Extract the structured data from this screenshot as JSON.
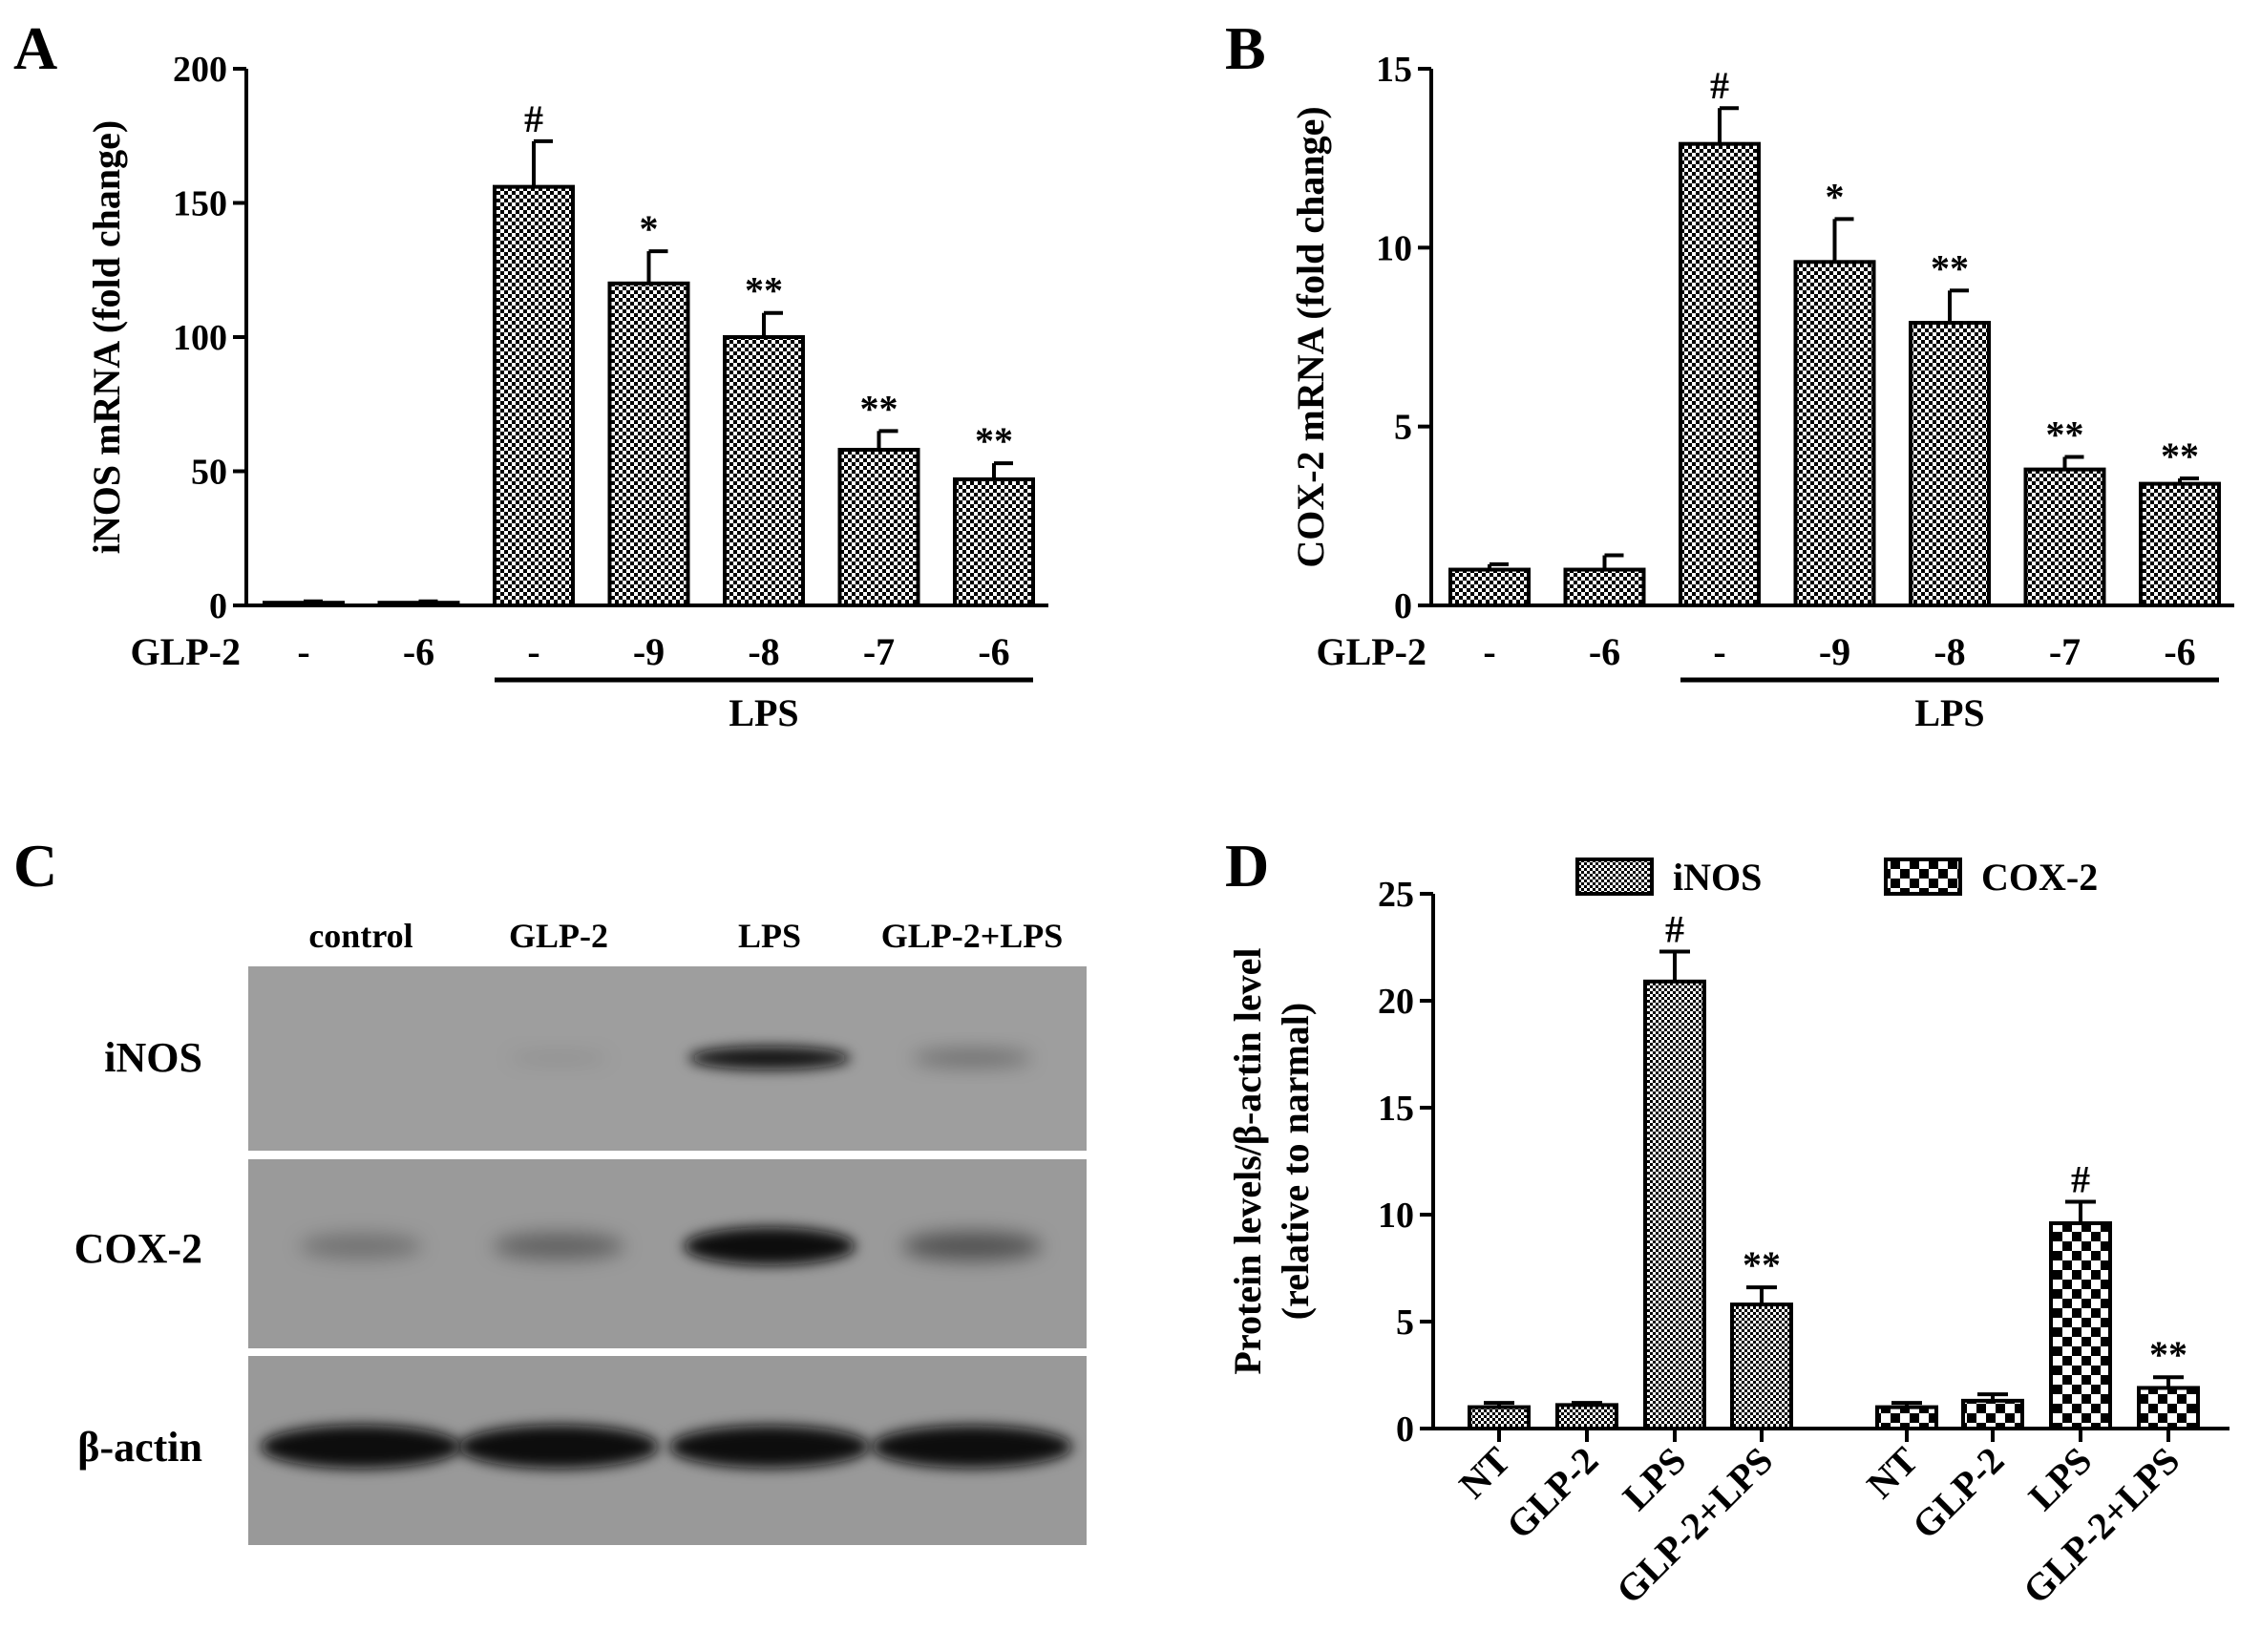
{
  "chart_data": [
    {
      "panel": "A",
      "type": "bar",
      "ylabel": "iNOS mRNA (fold change)",
      "ylim": [
        0,
        200
      ],
      "yticks": [
        0,
        50,
        100,
        150,
        200
      ],
      "row_label": "GLP-2",
      "categories": [
        "-",
        "-6",
        "-",
        "-9",
        "-8",
        "-7",
        "-6"
      ],
      "values": [
        1,
        1,
        156,
        120,
        100,
        58,
        47
      ],
      "errors": [
        0.5,
        0.5,
        17,
        12,
        9,
        7,
        6
      ],
      "significance": [
        "",
        "",
        "#",
        "*",
        "**",
        "**",
        "**"
      ],
      "group_label": "LPS",
      "group_indices": [
        2,
        6
      ],
      "pattern": "checker"
    },
    {
      "panel": "B",
      "type": "bar",
      "ylabel": "COX-2 mRNA (fold change)",
      "ylim": [
        0,
        15
      ],
      "yticks": [
        0,
        5,
        10,
        15
      ],
      "row_label": "GLP-2",
      "categories": [
        "-",
        "-6",
        "-",
        "-9",
        "-8",
        "-7",
        "-6"
      ],
      "values": [
        1.0,
        1.0,
        12.9,
        9.6,
        7.9,
        3.8,
        3.4
      ],
      "errors": [
        0.15,
        0.4,
        1.0,
        1.2,
        0.9,
        0.35,
        0.15
      ],
      "significance": [
        "",
        "",
        "#",
        "*",
        "**",
        "**",
        "**"
      ],
      "group_label": "LPS",
      "group_indices": [
        2,
        6
      ],
      "pattern": "checker"
    },
    {
      "panel": "C",
      "type": "table",
      "lanes": [
        "control",
        "GLP-2",
        "LPS",
        "GLP-2+LPS"
      ],
      "rows": [
        {
          "label": "iNOS",
          "band_intensity": [
            0.0,
            0.08,
            0.9,
            0.3
          ]
        },
        {
          "label": "COX-2",
          "band_intensity": [
            0.25,
            0.35,
            1.0,
            0.45
          ]
        },
        {
          "label": "β-actin",
          "band_intensity": [
            1.0,
            1.0,
            0.95,
            0.95
          ]
        }
      ]
    },
    {
      "panel": "D",
      "type": "bar",
      "ylabel": "Protein levels/β-actin level\n(relative to narmal)",
      "ylabel_lines": [
        "Protein levels/β-actin level",
        "(relative to narmal)"
      ],
      "ylim": [
        0,
        25
      ],
      "yticks": [
        0,
        5,
        10,
        15,
        20,
        25
      ],
      "legend_position": "top",
      "categories": [
        "NT",
        "GLP-2",
        "LPS",
        "GLP-2+LPS"
      ],
      "series": [
        {
          "name": "iNOS",
          "values": [
            1.0,
            1.1,
            20.9,
            5.8
          ],
          "errors": [
            0.2,
            0.1,
            1.4,
            0.8
          ],
          "significance": [
            "",
            "",
            "#",
            "**"
          ],
          "pattern": "fine-checker"
        },
        {
          "name": "COX-2",
          "values": [
            1.0,
            1.3,
            9.6,
            1.9
          ],
          "errors": [
            0.2,
            0.3,
            1.0,
            0.5
          ],
          "significance": [
            "",
            "",
            "#",
            "**"
          ],
          "pattern": "coarse-checker"
        }
      ]
    }
  ]
}
